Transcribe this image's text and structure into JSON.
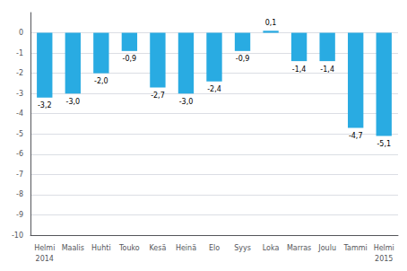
{
  "chart_data": {
    "type": "bar",
    "categories": [
      "Helmi",
      "Maalis",
      "Huhti",
      "Touko",
      "Kesä",
      "Heinä",
      "Elo",
      "Syys",
      "Loka",
      "Marras",
      "Joulu",
      "Tammi",
      "Helmi"
    ],
    "values": [
      -3.2,
      -3.0,
      -2.0,
      -0.9,
      -2.7,
      -3.0,
      -2.4,
      -0.9,
      0.1,
      -1.4,
      -1.4,
      -4.7,
      -5.1
    ],
    "value_labels": [
      "-3,2",
      "-3,0",
      "-2,0",
      "-0,9",
      "-2,7",
      "-3,0",
      "-2,4",
      "-0,9",
      "0,1",
      "-1,4",
      "-1,4",
      "-4,7",
      "-5,1"
    ],
    "data_labels": true,
    "color": "#29ABE2",
    "ylim": [
      -10,
      1
    ],
    "yticks": [
      0,
      -1,
      -2,
      -3,
      -4,
      -5,
      -6,
      -7,
      -8,
      -9,
      -10
    ],
    "grid": true,
    "annotations": [
      {
        "text": "2014",
        "category": 0
      },
      {
        "text": "2015",
        "category": 12
      }
    ]
  }
}
